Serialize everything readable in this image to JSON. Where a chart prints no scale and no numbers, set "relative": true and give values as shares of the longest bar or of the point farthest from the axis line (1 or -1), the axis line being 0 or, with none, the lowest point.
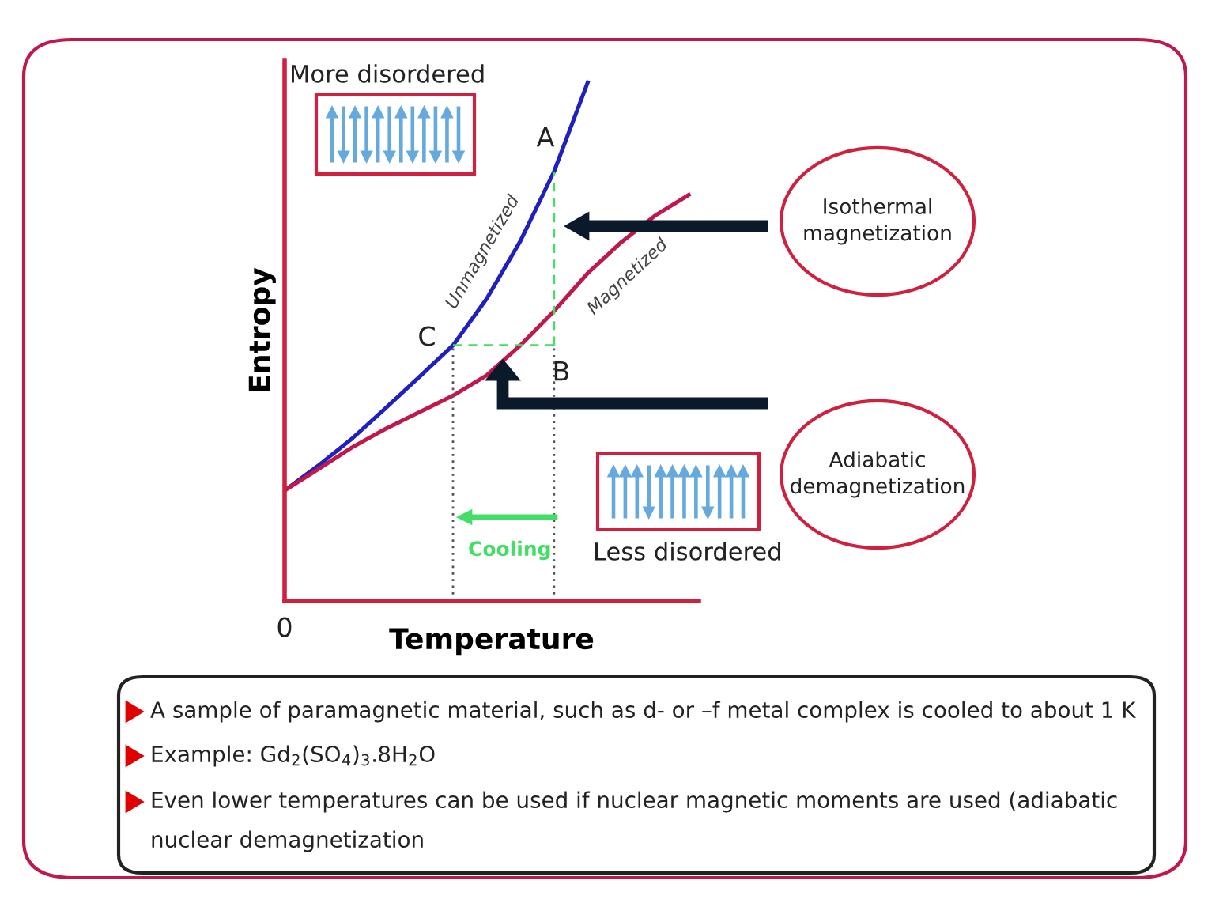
{
  "chart_data": {
    "type": "line",
    "relative": true,
    "xlabel": "Temperature",
    "ylabel": "Entropy",
    "tick_labels": false,
    "categories": [
      null,
      null,
      null,
      null,
      null,
      null,
      null,
      null,
      null,
      null,
      null,
      null,
      null
    ],
    "series": [
      {
        "name": "Unmagnetized",
        "color": "#2020c0",
        "line_style": "solid",
        "values": [
          0.213,
          0.261,
          0.313,
          0.372,
          0.432,
          0.493,
          0.583,
          0.694,
          0.828,
          1.0,
          null,
          null,
          null
        ]
      },
      {
        "name": "Magnetized",
        "color": "#c0184a",
        "line_style": "solid",
        "values": [
          0.213,
          0.254,
          0.296,
          0.332,
          0.364,
          0.396,
          0.435,
          0.493,
          0.559,
          0.632,
          0.692,
          0.743,
          0.783
        ]
      },
      {
        "color": "#44dd66",
        "line_style": "dashed",
        "values": [
          null,
          null,
          null,
          null,
          null,
          0.493,
          0.493,
          0.493,
          0.493,
          null,
          null,
          null,
          null
        ]
      }
    ],
    "annotations": [
      "More disordered",
      "Less disordered",
      "Cooling",
      "Isothermal magnetization",
      "Adiabatic demagnetization",
      "A sample of paramagnetic material, such as d- or –f metal complex is cooled to about 1 K",
      "Example: Gd$_{2}$(SO$_{4}$)$_{3}$.8H$_{2}$O",
      "Even lower temperatures can be used if nuclear magnetic moments are used (adiabatic",
      "nuclear demagnetization",
      "0",
      "A",
      "B",
      "C"
    ]
  }
}
